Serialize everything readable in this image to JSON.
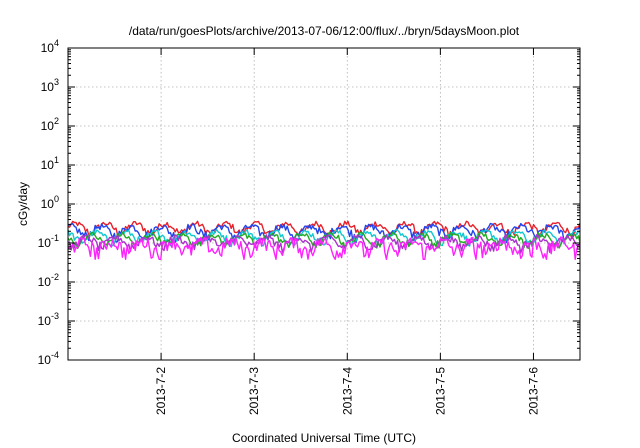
{
  "chart_data": {
    "type": "line",
    "title": "/data/run/goesPlots/archive/2013-07-06/12:00/flux/../bryn/5daysMoon.plot",
    "xlabel": "Coordinated Universal Time (UTC)",
    "ylabel": "cGy/day",
    "y_scale": "log",
    "ylim": [
      0.0001,
      10000
    ],
    "y_ticks": [
      {
        "value": 0.0001,
        "base": "10",
        "exp": "-4"
      },
      {
        "value": 0.001,
        "base": "10",
        "exp": "-3"
      },
      {
        "value": 0.01,
        "base": "10",
        "exp": "-2"
      },
      {
        "value": 0.1,
        "base": "10",
        "exp": "-1"
      },
      {
        "value": 1,
        "base": "10",
        "exp": "0"
      },
      {
        "value": 10,
        "base": "10",
        "exp": "1"
      },
      {
        "value": 100,
        "base": "10",
        "exp": "2"
      },
      {
        "value": 1000,
        "base": "10",
        "exp": "3"
      },
      {
        "value": 10000,
        "base": "10",
        "exp": "4"
      }
    ],
    "xlim": [
      "2013-07-01 00:00",
      "2013-07-06 12:00"
    ],
    "x_ticks": [
      "2013-7-2",
      "2013-7-3",
      "2013-7-4",
      "2013-7-5",
      "2013-7-6"
    ],
    "grid": true,
    "series": [
      {
        "color": "#e8202a",
        "level": 0.25,
        "spread": 0.1
      },
      {
        "color": "#2244ee",
        "level": 0.21,
        "spread": 0.1
      },
      {
        "color": "#10c8d0",
        "level": 0.15,
        "spread": 0.06
      },
      {
        "color": "#22aa22",
        "level": 0.13,
        "spread": 0.05
      },
      {
        "color": "#aa33cc",
        "level": 0.11,
        "spread": 0.05
      },
      {
        "color": "#ff22ff",
        "level": 0.085,
        "spread": 0.07
      }
    ]
  }
}
